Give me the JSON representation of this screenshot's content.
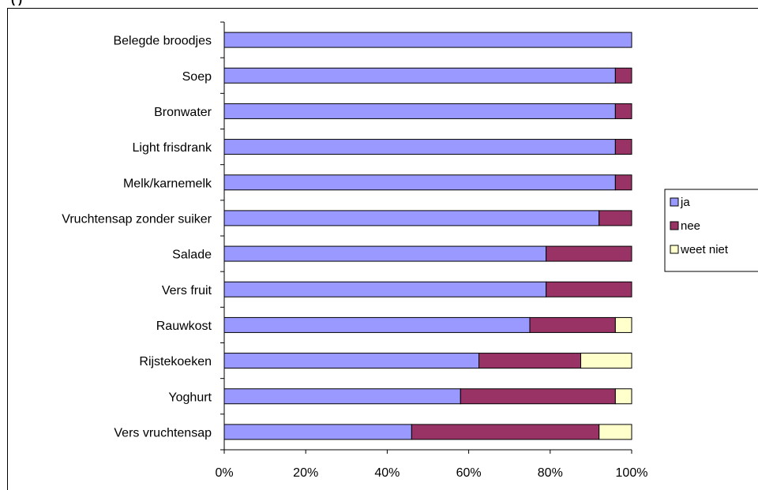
{
  "caption": "(          )",
  "chart_data": {
    "type": "bar",
    "orientation": "horizontal",
    "stacked": "percent",
    "title": "",
    "xlabel": "",
    "ylabel": "",
    "xlim": [
      0,
      100
    ],
    "x_ticks": [
      "0%",
      "20%",
      "40%",
      "60%",
      "80%",
      "100%"
    ],
    "grid": false,
    "legend_position": "right",
    "categories": [
      "Belegde broodjes",
      "Soep",
      "Bronwater",
      "Light frisdrank",
      "Melk/karnemelk",
      "Vruchtensap zonder suiker",
      "Salade",
      "Vers fruit",
      "Rauwkost",
      "Rijstekoeken",
      "Yoghurt",
      "Vers vruchtensap"
    ],
    "series": [
      {
        "name": "ja",
        "color": "#9999FF",
        "values": [
          100,
          96,
          96,
          96,
          96,
          92,
          79,
          79,
          75,
          62.5,
          58,
          46
        ]
      },
      {
        "name": "nee",
        "color": "#993366",
        "values": [
          0,
          4,
          4,
          4,
          4,
          8,
          21,
          21,
          21,
          25,
          38,
          46
        ]
      },
      {
        "name": "weet niet",
        "color": "#FFFFCC",
        "values": [
          0,
          0,
          0,
          0,
          0,
          0,
          0,
          0,
          4,
          12.5,
          4,
          8
        ]
      }
    ]
  }
}
